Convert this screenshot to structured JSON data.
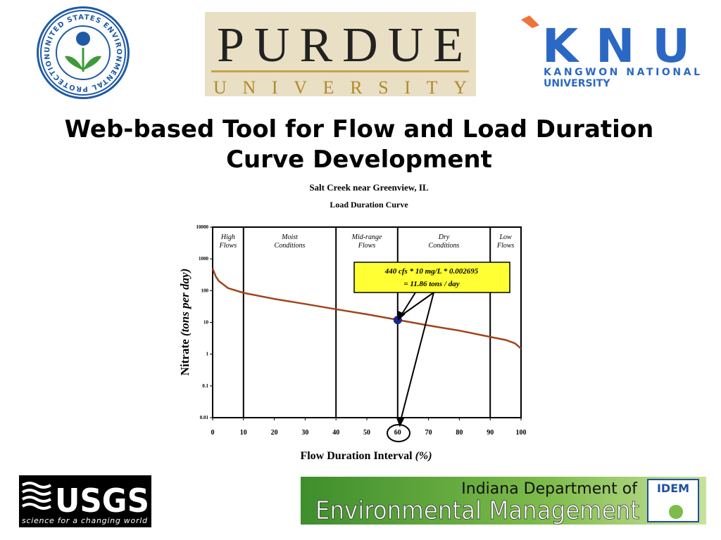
{
  "slide": {
    "title_lines": [
      "Web-based Tool for Flow and Load Duration",
      "Curve Development"
    ],
    "epa_seal": "UNITED STATES ENVIRONMENTAL PROTECTION AGENCY",
    "purdue": [
      "PURDUE",
      "UNIVERSITY"
    ],
    "knu": [
      "KNU",
      "KANGWON NATIONAL",
      "UNIVERSITY"
    ],
    "usgs": [
      "USGS",
      "science for a changing world"
    ],
    "idem": [
      "Indiana Department of",
      "Environmental Management",
      "IDEM"
    ]
  },
  "chart_data": {
    "type": "line",
    "title": "Salt Creek near Greenview, IL",
    "subtitle": "Load Duration Curve",
    "xlabel": "Flow Duration Interval",
    "xlabel_unit": "(%)",
    "ylabel": "Nitrate",
    "ylabel_unit": "(tons per day)",
    "x": [
      0,
      1,
      2,
      5,
      10,
      20,
      30,
      40,
      50,
      60,
      70,
      80,
      90,
      95,
      98,
      100
    ],
    "values": [
      500,
      280,
      200,
      120,
      85,
      55,
      38,
      26,
      18,
      12,
      8,
      5.5,
      3.5,
      2.8,
      2.2,
      1.5
    ],
    "color": "#a0441c",
    "ylog": true,
    "xlim": [
      0,
      100
    ],
    "xticks": [
      0,
      10,
      20,
      30,
      40,
      50,
      60,
      70,
      80,
      90,
      100
    ],
    "ylim": [
      0.01,
      10000
    ],
    "yticks": [
      0.01,
      0.1,
      1,
      10,
      100,
      1000,
      10000
    ],
    "zones": [
      {
        "lines": [
          "High",
          "Flows"
        ],
        "from": 0,
        "to": 10
      },
      {
        "lines": [
          "Moist",
          "Conditions"
        ],
        "from": 10,
        "to": 40
      },
      {
        "lines": [
          "Mid-range",
          "Flows"
        ],
        "from": 40,
        "to": 60
      },
      {
        "lines": [
          "Dry",
          "Conditions"
        ],
        "from": 60,
        "to": 90
      },
      {
        "lines": [
          "Low",
          "Flows"
        ],
        "from": 90,
        "to": 100
      }
    ],
    "highlight": {
      "x": 60,
      "y": 11.86,
      "color": "#1a2a8a"
    },
    "annotation": [
      "440 cfs  *  10 mg/L  *  0.002695",
      "=  11.86 tons / day"
    ]
  }
}
